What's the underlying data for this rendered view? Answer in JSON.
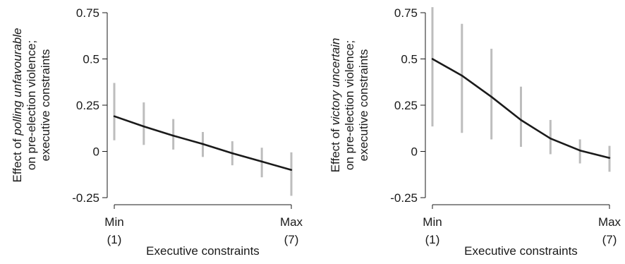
{
  "chart_data": [
    {
      "type": "line",
      "ylabel_parts": [
        {
          "text": "Effect of ",
          "italic": false
        },
        {
          "text": "polling unfavourable",
          "italic": true
        }
      ],
      "ylabel_line2": "on pre-election violence;",
      "ylabel_line3": "executive constraints",
      "xlabel": "Executive constraints",
      "xlim": [
        1,
        7
      ],
      "ylim": [
        -0.25,
        0.75
      ],
      "y_ticks": [
        {
          "value": 0.75,
          "label": "0.75"
        },
        {
          "value": 0.5,
          "label": "0.5"
        },
        {
          "value": 0.25,
          "label": "0.25"
        },
        {
          "value": 0,
          "label": "0"
        },
        {
          "value": -0.25,
          "label": "-0.25"
        }
      ],
      "x_ticks": [
        {
          "value": 1,
          "label": "Min",
          "sublabel": "(1)"
        },
        {
          "value": 7,
          "label": "Max",
          "sublabel": "(7)"
        }
      ],
      "x": [
        1,
        2,
        3,
        4,
        5,
        6,
        7
      ],
      "y": [
        0.19,
        0.135,
        0.085,
        0.04,
        -0.01,
        -0.055,
        -0.1
      ],
      "ci_low": [
        0.06,
        0.035,
        0.01,
        -0.03,
        -0.075,
        -0.14,
        -0.24
      ],
      "ci_high": [
        0.37,
        0.265,
        0.175,
        0.105,
        0.055,
        0.02,
        -0.005
      ],
      "grid": false
    },
    {
      "type": "line",
      "ylabel_parts": [
        {
          "text": "Effect of ",
          "italic": false
        },
        {
          "text": "victory uncertain",
          "italic": true
        }
      ],
      "ylabel_line2": "on pre-election violence;",
      "ylabel_line3": "executive constraints",
      "xlabel": "Executive constraints",
      "xlim": [
        1,
        7
      ],
      "ylim": [
        -0.25,
        0.75
      ],
      "y_ticks": [
        {
          "value": 0.75,
          "label": "0.75"
        },
        {
          "value": 0.5,
          "label": "0.5"
        },
        {
          "value": 0.25,
          "label": "0.25"
        },
        {
          "value": 0,
          "label": "0"
        },
        {
          "value": -0.25,
          "label": "-0.25"
        }
      ],
      "x_ticks": [
        {
          "value": 1,
          "label": "Min",
          "sublabel": "(1)"
        },
        {
          "value": 7,
          "label": "Max",
          "sublabel": "(7)"
        }
      ],
      "x": [
        1,
        2,
        3,
        4,
        5,
        6,
        7
      ],
      "y": [
        0.5,
        0.41,
        0.295,
        0.17,
        0.07,
        0.005,
        -0.035
      ],
      "ci_low": [
        0.135,
        0.1,
        0.065,
        0.025,
        -0.015,
        -0.065,
        -0.11
      ],
      "ci_high": [
        0.78,
        0.69,
        0.555,
        0.35,
        0.17,
        0.065,
        0.03
      ],
      "grid": false
    }
  ]
}
